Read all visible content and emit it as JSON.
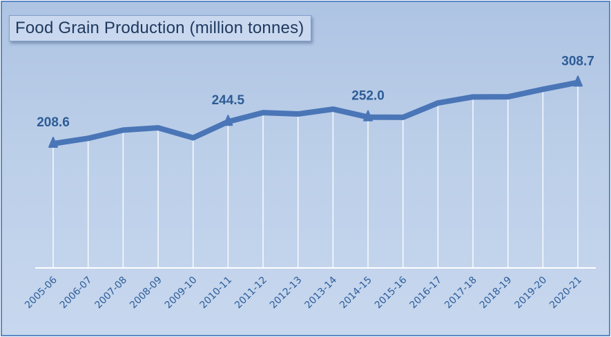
{
  "colors": {
    "line": "#4a76b7",
    "gridline": "#ffffff",
    "axis": "#ffffff",
    "label": "#2d5c96"
  },
  "chart_data": {
    "type": "line",
    "title": "Food Grain Production (million tonnes)",
    "xlabel": "",
    "ylabel": "",
    "categories": [
      "2005-06",
      "2006-07",
      "2007-08",
      "2008-09",
      "2009-10",
      "2010-11",
      "2011-12",
      "2012-13",
      "2013-14",
      "2014-15",
      "2015-16",
      "2016-17",
      "2017-18",
      "2018-19",
      "2019-20",
      "2020-21"
    ],
    "series": [
      {
        "values": [
          208.6,
          217.3,
          230.8,
          234.5,
          218.1,
          244.5,
          259.3,
          257.1,
          265.0,
          252.0,
          251.6,
          275.1,
          285.0,
          285.2,
          297.5,
          308.7
        ]
      }
    ],
    "data_labels": [
      {
        "index": 0,
        "text": "208.6"
      },
      {
        "index": 5,
        "text": "244.5"
      },
      {
        "index": 9,
        "text": "252.0"
      },
      {
        "index": 15,
        "text": "308.7"
      }
    ],
    "ylim": [
      0,
      350
    ],
    "vertical_gridlines": true,
    "y_axis_visible": false,
    "legend": "none"
  }
}
